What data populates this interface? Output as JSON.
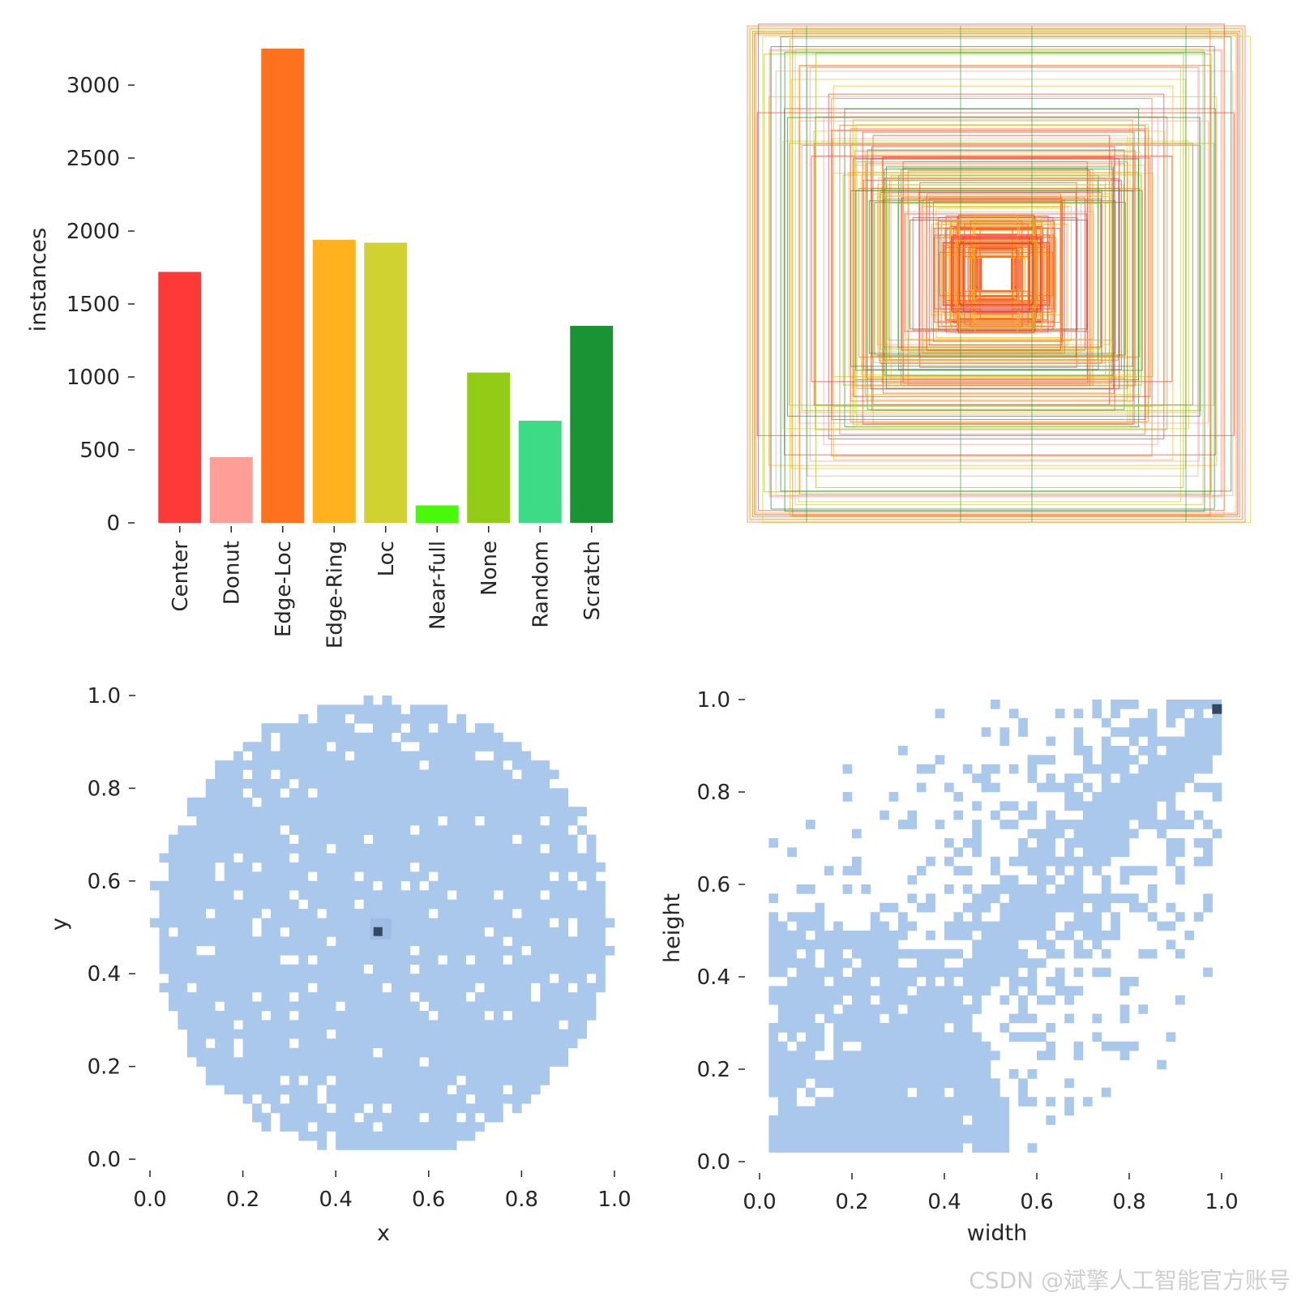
{
  "watermark": "CSDN @斌擎人工智能官方账号",
  "chart_data": [
    {
      "id": "class-counts",
      "type": "bar",
      "ylabel": "instances",
      "ylim": [
        0,
        3250
      ],
      "yticks": [
        0,
        500,
        1000,
        1500,
        2000,
        2500,
        3000
      ],
      "categories": [
        "Center",
        "Donut",
        "Edge-Loc",
        "Edge-Ring",
        "Loc",
        "Near-full",
        "None",
        "Random",
        "Scratch"
      ],
      "values": [
        1720,
        450,
        3250,
        1940,
        1920,
        120,
        1030,
        700,
        1350
      ],
      "colors": [
        "#ff3838",
        "#ff9d97",
        "#ff701f",
        "#ffb21d",
        "#cfd231",
        "#48f90a",
        "#92cc17",
        "#3ddb86",
        "#1a9334"
      ]
    },
    {
      "id": "box-overlay",
      "type": "other",
      "description_colors": [
        "#ff3838",
        "#ff701f",
        "#ffb21d",
        "#cfd231",
        "#92cc17",
        "#1a9334",
        "#ff9d97"
      ]
    },
    {
      "id": "xy-heatmap",
      "type": "heatmap",
      "xlabel": "x",
      "ylabel": "y",
      "xlim": [
        0,
        1
      ],
      "ylim": [
        0,
        1
      ],
      "xticks": [
        "0.0",
        "0.2",
        "0.4",
        "0.6",
        "0.8",
        "1.0"
      ],
      "yticks": [
        "0.0",
        "0.2",
        "0.4",
        "0.6",
        "0.8",
        "1.0"
      ],
      "fill_color": "#aac8ec",
      "peak_color": "#34495e",
      "peak": {
        "x": 0.49,
        "y": 0.49
      }
    },
    {
      "id": "wh-heatmap",
      "type": "heatmap",
      "xlabel": "width",
      "ylabel": "height",
      "xlim": [
        0,
        1
      ],
      "ylim": [
        0,
        1
      ],
      "xticks": [
        "0.0",
        "0.2",
        "0.4",
        "0.6",
        "0.8",
        "1.0"
      ],
      "yticks": [
        "0.0",
        "0.2",
        "0.4",
        "0.6",
        "0.8",
        "1.0"
      ],
      "fill_color": "#aac8ec",
      "peak_color": "#34495e",
      "peak": {
        "x": 0.99,
        "y": 0.99
      }
    }
  ]
}
